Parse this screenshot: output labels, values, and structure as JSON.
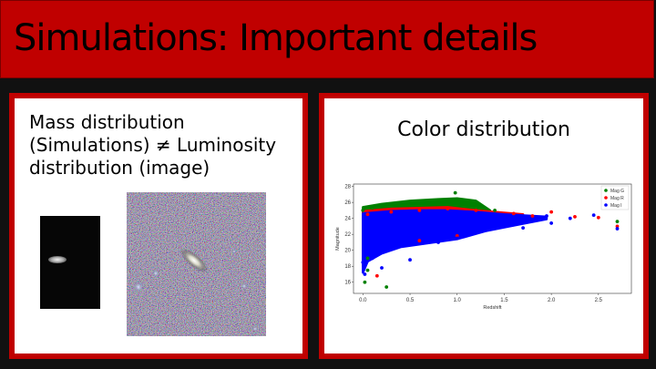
{
  "slide": {
    "title": "Simulations: Important details"
  },
  "left_panel": {
    "lines": [
      "Mass distribution",
      "(Simulations) ≠ Luminosity",
      "distribution (image)"
    ]
  },
  "right_panel": {
    "title": "Color distribution"
  },
  "colors": {
    "accent": "#c00000",
    "background": "#111111",
    "mag_g": "#008000",
    "mag_r": "#ff0000",
    "mag_i": "#0000ff"
  },
  "chart_data": {
    "type": "scatter",
    "xlabel": "Redshift",
    "ylabel": "Magnitude",
    "xticks": [
      "0.0",
      "0.5",
      "1.0",
      "1.5",
      "2.0",
      "2.5"
    ],
    "yticks": [
      "16",
      "18",
      "20",
      "22",
      "24",
      "26",
      "28"
    ],
    "xlim": [
      -0.1,
      2.85
    ],
    "ylim": [
      14.6,
      28.3
    ],
    "legend_position": "top-right",
    "series": [
      {
        "name": "Mag G",
        "color": "#008000",
        "points": [
          [
            0.0,
            25.0
          ],
          [
            0.1,
            25.3
          ],
          [
            0.2,
            25.5
          ],
          [
            0.4,
            25.7
          ],
          [
            0.6,
            26.0
          ],
          [
            0.8,
            26.1
          ],
          [
            1.0,
            26.3
          ],
          [
            0.98,
            27.2
          ],
          [
            1.2,
            25.9
          ],
          [
            1.4,
            25.0
          ],
          [
            0.05,
            17.5
          ],
          [
            0.02,
            16.0
          ],
          [
            0.25,
            15.4
          ],
          [
            0.05,
            19.0
          ],
          [
            2.7,
            23.6
          ]
        ]
      },
      {
        "name": "Mag R",
        "color": "#ff0000",
        "points": [
          [
            0.05,
            24.5
          ],
          [
            0.3,
            24.8
          ],
          [
            0.6,
            25.0
          ],
          [
            0.9,
            25.2
          ],
          [
            1.2,
            25.0
          ],
          [
            1.6,
            24.6
          ],
          [
            1.8,
            24.3
          ],
          [
            2.0,
            24.8
          ],
          [
            2.25,
            24.2
          ],
          [
            2.5,
            24.1
          ],
          [
            2.7,
            23.0
          ],
          [
            0.6,
            21.2
          ],
          [
            1.0,
            21.8
          ],
          [
            0.15,
            16.8
          ]
        ]
      },
      {
        "name": "Mag I",
        "color": "#0000ff",
        "points": [
          [
            0.0,
            18.5
          ],
          [
            0.02,
            17.0
          ],
          [
            0.1,
            19.0
          ],
          [
            0.3,
            20.2
          ],
          [
            0.5,
            20.8
          ],
          [
            0.8,
            21.0
          ],
          [
            1.0,
            21.5
          ],
          [
            1.3,
            22.5
          ],
          [
            1.6,
            23.2
          ],
          [
            1.8,
            23.8
          ],
          [
            1.95,
            24.3
          ],
          [
            2.2,
            24.0
          ],
          [
            2.45,
            24.4
          ],
          [
            2.7,
            22.7
          ],
          [
            0.5,
            18.8
          ],
          [
            0.2,
            17.8
          ],
          [
            2.0,
            23.4
          ],
          [
            1.7,
            22.8
          ]
        ]
      }
    ],
    "bands": [
      {
        "name": "Mag G",
        "color": "#008000",
        "upper": [
          [
            0.0,
            25.4
          ],
          [
            0.2,
            25.8
          ],
          [
            0.5,
            26.2
          ],
          [
            0.8,
            26.4
          ],
          [
            1.0,
            26.5
          ],
          [
            1.2,
            26.2
          ],
          [
            1.35,
            25.0
          ]
        ],
        "lower": [
          [
            0.0,
            24.2
          ],
          [
            0.2,
            24.5
          ],
          [
            0.5,
            24.8
          ],
          [
            0.8,
            25.0
          ],
          [
            1.0,
            25.1
          ],
          [
            1.2,
            24.8
          ],
          [
            1.35,
            24.6
          ]
        ]
      },
      {
        "name": "Mag R",
        "color": "#ff0000",
        "upper": [
          [
            0.0,
            24.9
          ],
          [
            0.3,
            25.2
          ],
          [
            0.6,
            25.3
          ],
          [
            0.9,
            25.4
          ],
          [
            1.2,
            25.0
          ],
          [
            1.5,
            24.7
          ],
          [
            1.7,
            24.5
          ]
        ],
        "lower": [
          [
            0.0,
            18.0
          ],
          [
            0.1,
            19.5
          ],
          [
            0.3,
            20.5
          ],
          [
            0.6,
            21.1
          ],
          [
            1.0,
            21.8
          ],
          [
            1.3,
            22.6
          ],
          [
            1.7,
            23.4
          ]
        ]
      },
      {
        "name": "Mag I",
        "color": "#0000ff",
        "upper": [
          [
            0.0,
            24.6
          ],
          [
            0.3,
            24.9
          ],
          [
            0.6,
            25.0
          ],
          [
            0.9,
            25.0
          ],
          [
            1.2,
            24.8
          ],
          [
            1.5,
            24.5
          ],
          [
            1.8,
            24.3
          ],
          [
            1.95,
            24.2
          ]
        ],
        "lower": [
          [
            0.0,
            17.2
          ],
          [
            0.05,
            18.6
          ],
          [
            0.2,
            19.6
          ],
          [
            0.4,
            20.4
          ],
          [
            0.7,
            20.9
          ],
          [
            1.0,
            21.4
          ],
          [
            1.3,
            22.4
          ],
          [
            1.6,
            23.1
          ],
          [
            1.95,
            23.9
          ]
        ]
      }
    ]
  }
}
